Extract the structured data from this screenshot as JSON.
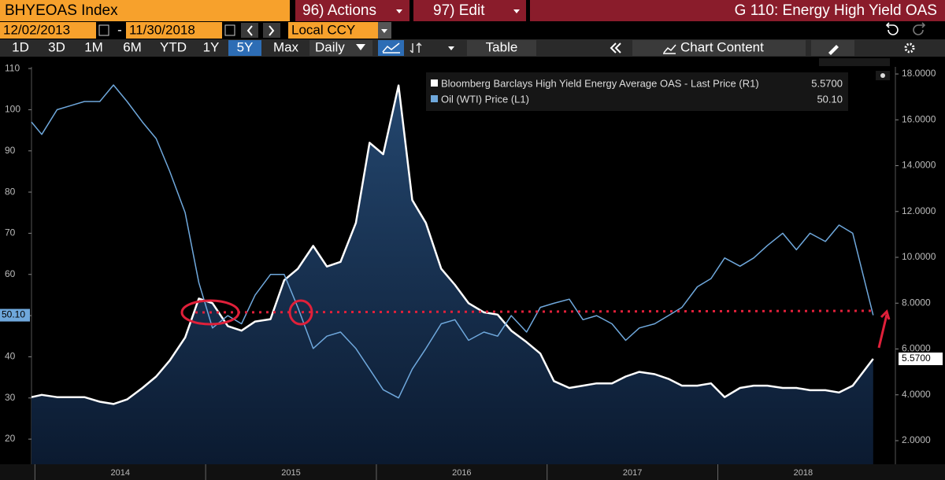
{
  "ui": {
    "ticker": "BHYEOAS Index",
    "actions": "96) Actions",
    "edit": "97) Edit",
    "chart_name": "G 110: Energy High Yield OAS",
    "start_date": "12/02/2013",
    "date_separator": "-",
    "end_date": "11/30/2018",
    "currency": "Local CCY",
    "periods": [
      "1D",
      "3D",
      "1M",
      "6M",
      "YTD",
      "1Y",
      "5Y",
      "Max"
    ],
    "frequency": "Daily",
    "table": "Table",
    "chart_content": "Chart Content"
  },
  "chart_data": {
    "type": "line",
    "x": [
      2013.98,
      2014.04,
      2014.13,
      2014.21,
      2014.29,
      2014.38,
      2014.46,
      2014.54,
      2014.63,
      2014.71,
      2014.79,
      2014.88,
      2014.96,
      2015.04,
      2015.13,
      2015.21,
      2015.29,
      2015.38,
      2015.46,
      2015.54,
      2015.63,
      2015.71,
      2015.79,
      2015.88,
      2015.96,
      2016.04,
      2016.13,
      2016.21,
      2016.29,
      2016.38,
      2016.46,
      2016.54,
      2016.63,
      2016.71,
      2016.79,
      2016.88,
      2016.96,
      2017.04,
      2017.13,
      2017.21,
      2017.29,
      2017.38,
      2017.46,
      2017.54,
      2017.63,
      2017.71,
      2017.79,
      2017.88,
      2017.96,
      2018.04,
      2018.13,
      2018.21,
      2018.29,
      2018.38,
      2018.46,
      2018.54,
      2018.63,
      2018.71,
      2018.79,
      2018.91
    ],
    "xlim": [
      2013.98,
      2019.04
    ],
    "xticks": [
      2014,
      2015,
      2016,
      2017,
      2018
    ],
    "year_labels": [
      "2014",
      "2015",
      "2016",
      "2017",
      "2018"
    ],
    "ylim": [
      13.9,
      110.4
    ],
    "yticks": [
      20,
      30,
      40,
      50,
      60,
      70,
      80,
      90,
      100,
      110
    ],
    "y2lim": [
      0.97,
      18.31
    ],
    "y2ticks": [
      {
        "value": 2,
        "label": "2.0000"
      },
      {
        "value": 4,
        "label": "4.0000"
      },
      {
        "value": 6,
        "label": "6.0000"
      },
      {
        "value": 8,
        "label": "8.0000"
      },
      {
        "value": 10,
        "label": "10.0000"
      },
      {
        "value": 12,
        "label": "12.0000"
      },
      {
        "value": 14,
        "label": "14.0000"
      },
      {
        "value": 16,
        "label": "16.0000"
      },
      {
        "value": 18,
        "label": "18.0000"
      }
    ],
    "series": [
      {
        "name": "Bloomberg Barclays High Yield Energy Average OAS - Last Price (R1)",
        "color": "#ffffff",
        "axis": "y2",
        "last_label": "5.5700",
        "values": [
          3.9,
          4.0,
          3.9,
          3.9,
          3.9,
          3.7,
          3.6,
          3.8,
          4.3,
          4.8,
          5.5,
          6.5,
          8.2,
          8.0,
          7.0,
          6.8,
          7.2,
          7.3,
          9.0,
          9.5,
          10.5,
          9.6,
          9.8,
          11.5,
          15.0,
          14.5,
          17.5,
          12.5,
          11.5,
          9.5,
          8.8,
          8.0,
          7.6,
          7.5,
          6.8,
          6.3,
          5.8,
          4.6,
          4.3,
          4.4,
          4.5,
          4.5,
          4.8,
          5.0,
          4.9,
          4.7,
          4.4,
          4.4,
          4.5,
          3.9,
          4.3,
          4.4,
          4.4,
          4.3,
          4.3,
          4.2,
          4.2,
          4.1,
          4.4,
          5.57
        ]
      },
      {
        "name": "Oil (WTI) Price (L1)",
        "color": "#6fa8dc",
        "last_label": "50.10",
        "values": [
          97,
          94,
          100,
          101,
          102,
          102,
          106,
          102,
          97,
          93,
          85,
          75,
          58,
          47,
          50,
          48,
          55,
          60,
          60,
          52,
          42,
          45,
          46,
          42,
          37,
          32,
          30,
          37,
          42,
          48,
          49,
          44,
          46,
          45,
          50,
          46,
          52,
          53,
          54,
          49,
          50,
          48,
          44,
          47,
          48,
          50,
          52,
          57,
          59,
          64,
          62,
          64,
          67,
          70,
          66,
          70,
          68,
          72,
          70,
          50.1
        ]
      }
    ]
  }
}
